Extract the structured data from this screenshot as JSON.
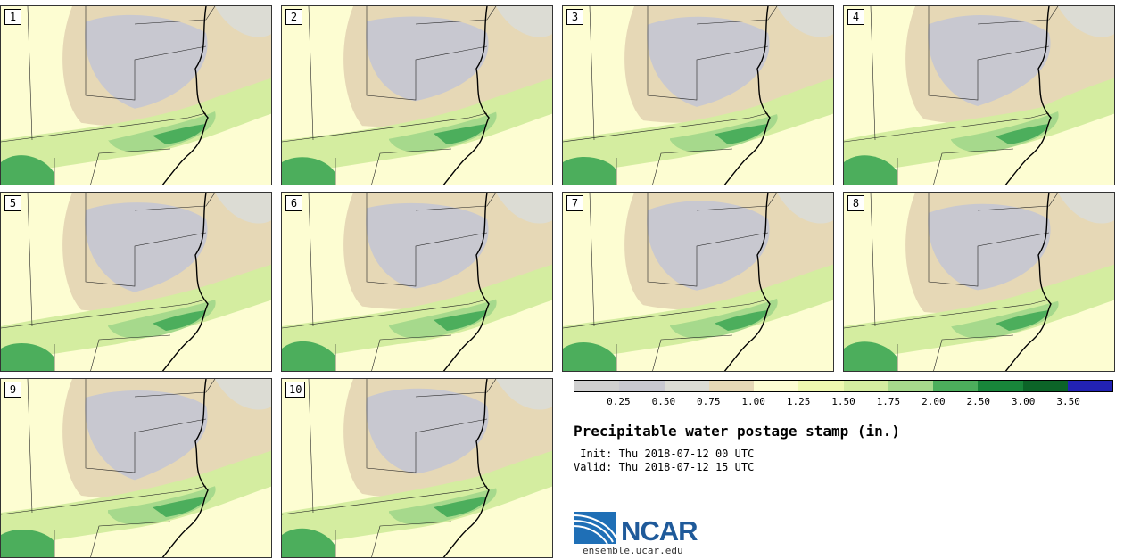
{
  "panels": [
    {
      "label": "1"
    },
    {
      "label": "2"
    },
    {
      "label": "3"
    },
    {
      "label": "4"
    },
    {
      "label": "5"
    },
    {
      "label": "6"
    },
    {
      "label": "7"
    },
    {
      "label": "8"
    },
    {
      "label": "9"
    },
    {
      "label": "10"
    }
  ],
  "colorbar": {
    "colors": [
      "#d0d0d0",
      "#c8c8d0",
      "#dcdcd4",
      "#e6d8b6",
      "#fdfdd2",
      "#eff9b0",
      "#d4eda0",
      "#a6d98c",
      "#4cae5c",
      "#18853a",
      "#0c6428",
      "#2222b4"
    ],
    "ticks": [
      "0.25",
      "0.50",
      "0.75",
      "1.00",
      "1.25",
      "1.50",
      "1.75",
      "2.00",
      "2.50",
      "3.00",
      "3.50"
    ]
  },
  "title": "Precipitable water postage stamp (in.)",
  "init": " Init: Thu 2018-07-12 00 UTC",
  "valid": "Valid: Thu 2018-07-12 15 UTC",
  "logo": {
    "name": "NCAR",
    "url": "ensemble.ucar.edu"
  }
}
